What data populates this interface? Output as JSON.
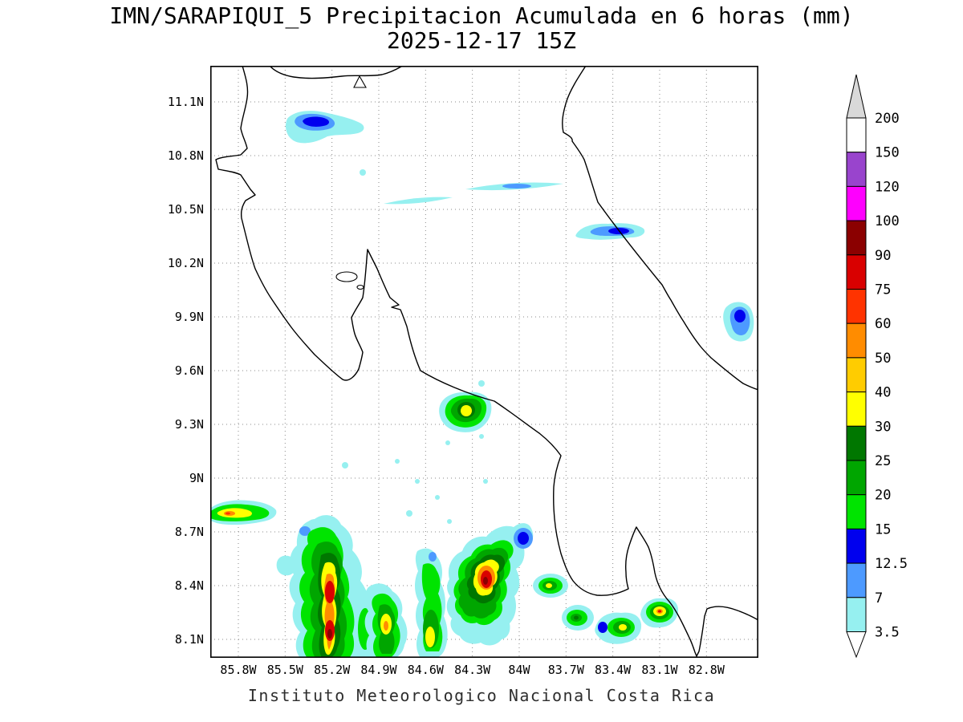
{
  "title": "IMN/SARAPIQUI_5 Precipitacion Acumulada en 6 horas (mm)",
  "subtitle": "2025-12-17 15Z",
  "caption": "Instituto Meteorologico Nacional Costa Rica",
  "axes": {
    "lat_ticks": [
      "11.1N",
      "10.8N",
      "10.5N",
      "10.2N",
      "9.9N",
      "9.6N",
      "9.3N",
      "9N",
      "8.7N",
      "8.4N",
      "8.1N"
    ],
    "lon_ticks": [
      "85.8W",
      "85.5W",
      "85.2W",
      "84.9W",
      "84.6W",
      "84.3W",
      "84W",
      "83.7W",
      "83.4W",
      "83.1W",
      "82.8W"
    ]
  },
  "colorbar": {
    "labels": [
      "200",
      "150",
      "120",
      "100",
      "90",
      "75",
      "60",
      "50",
      "40",
      "30",
      "25",
      "20",
      "15",
      "12.5",
      "7",
      "3.5"
    ],
    "colors_top_to_bottom": [
      "#ffffff",
      "#9944cd",
      "#fe00fe",
      "#8b0000",
      "#d90000",
      "#ff3300",
      "#ff8c00",
      "#ffcc00",
      "#ffff00",
      "#007700",
      "#00a600",
      "#00e400",
      "#0000ee",
      "#4d9aff",
      "#96f0f0"
    ],
    "arrow_top_color": "#d9d9d9",
    "arrow_bottom_color": "#ffffff"
  },
  "chart_data": {
    "type": "heatmap",
    "subtype": "filled-contour precipitation map",
    "title": "IMN/SARAPIQUI_5 Precipitacion Acumulada en 6 horas (mm)",
    "valid_time": "2025-12-17 15Z",
    "variable": "Precipitacion Acumulada en 6 horas",
    "units": "mm",
    "region": "Costa Rica",
    "lat_range": [
      "8.1N",
      "11.1N"
    ],
    "lon_range": [
      "85.8W",
      "82.8W"
    ],
    "grid": "dotted, every 0.3 degrees",
    "legend_position": "right vertical colorbar",
    "levels_mm": [
      3.5,
      7,
      12.5,
      15,
      20,
      25,
      30,
      40,
      50,
      60,
      75,
      90,
      100,
      120,
      150,
      200
    ],
    "precip_features": [
      {
        "lat": "10.94N",
        "lon": "85.30W",
        "max_level": "12.5-15 mm",
        "desc": "band near Lake Nicaragua shore"
      },
      {
        "lat": "10.71N",
        "lon": "85.00W",
        "max_level": "3.5-7 mm",
        "desc": "small spot"
      },
      {
        "lat": "10.56N",
        "lon": "84.63W",
        "max_level": "3.5-7 mm",
        "desc": "thin streak"
      },
      {
        "lat": "10.63N",
        "lon": "84.03W",
        "max_level": "7-12.5 mm",
        "desc": "thin streak"
      },
      {
        "lat": "10.38N",
        "lon": "83.39W",
        "max_level": "12.5-15 mm",
        "desc": "Caribbean coast cell"
      },
      {
        "lat": "9.88N",
        "lon": "82.60W",
        "max_level": "12.5-15 mm",
        "desc": "cell near right edge"
      },
      {
        "lat": "9.37N",
        "lon": "84.35W",
        "max_level": "30-40 mm",
        "desc": "isolated interior cell"
      },
      {
        "lat": "8.79N",
        "lon": "85.78W",
        "max_level": "50-60 mm",
        "desc": "band at west edge"
      },
      {
        "lat": "8.35N",
        "lon": "85.19W",
        "max_level": "90-100 mm",
        "desc": "strong offshore Pacific cell"
      },
      {
        "lat": "8.20N",
        "lon": "84.82W",
        "max_level": "50-60 mm",
        "desc": "offshore cell"
      },
      {
        "lat": "8.29N",
        "lon": "84.56W",
        "max_level": "30-40 mm",
        "desc": "offshore band"
      },
      {
        "lat": "8.43N",
        "lon": "84.19W",
        "max_level": "90-100 mm",
        "desc": "strong offshore Pacific cell"
      },
      {
        "lat": "8.39N",
        "lon": "83.79W",
        "max_level": "30-40 mm",
        "desc": "small cell"
      },
      {
        "lat": "8.22N",
        "lon": "83.62W",
        "max_level": "25-30 mm",
        "desc": "small cell"
      },
      {
        "lat": "8.17N",
        "lon": "83.34W",
        "max_level": "30-40 mm",
        "desc": "small cell"
      },
      {
        "lat": "8.25N",
        "lon": "83.11W",
        "max_level": "60-75 mm",
        "desc": "cell near Burica peninsula"
      }
    ]
  }
}
